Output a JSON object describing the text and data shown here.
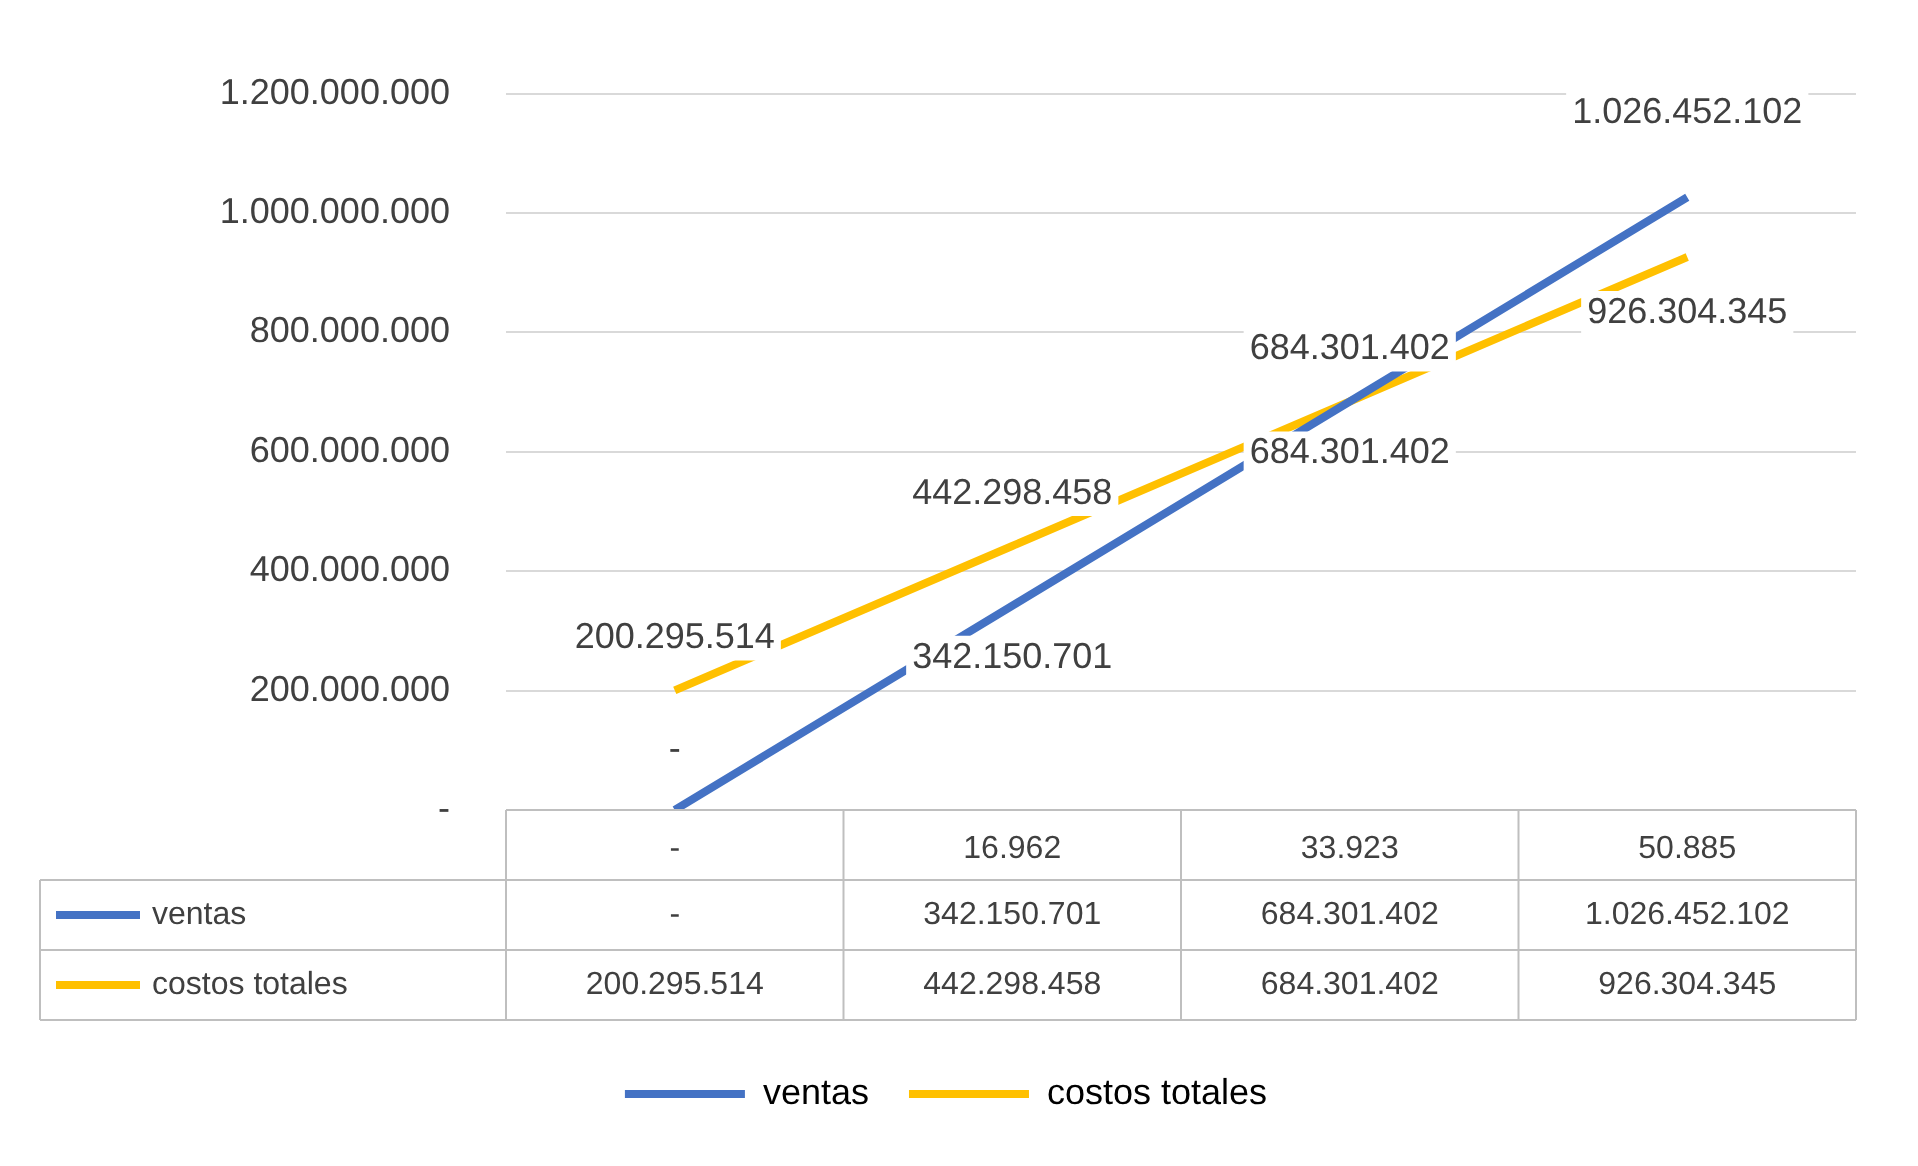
{
  "chart_data": {
    "type": "line",
    "categories": [
      "-",
      "16.962",
      "33.923",
      "50.885"
    ],
    "series": [
      {
        "name": "ventas",
        "color": "#4472c4",
        "values": [
          0,
          342150701,
          684301402,
          1026452102
        ],
        "value_labels": [
          "-",
          "342.150.701",
          "684.301.402",
          "1.026.452.102"
        ]
      },
      {
        "name": "costos totales",
        "color": "#ffc000",
        "values": [
          200295514,
          442298458,
          684301402,
          926304345
        ],
        "value_labels": [
          "200.295.514",
          "442.298.458",
          "684.301.402",
          "926.304.345"
        ]
      }
    ],
    "ylim": [
      0,
      1200000000
    ],
    "yticks": [
      {
        "value": 0,
        "label": "-"
      },
      {
        "value": 200000000,
        "label": "200.000.000"
      },
      {
        "value": 400000000,
        "label": "400.000.000"
      },
      {
        "value": 600000000,
        "label": "600.000.000"
      },
      {
        "value": 800000000,
        "label": "800.000.000"
      },
      {
        "value": 1000000000,
        "label": "1.000.000.000"
      },
      {
        "value": 1200000000,
        "label": "1.200.000.000"
      }
    ],
    "grid": "y",
    "legend": "bottom",
    "marker": "none",
    "line_style": "solid"
  }
}
